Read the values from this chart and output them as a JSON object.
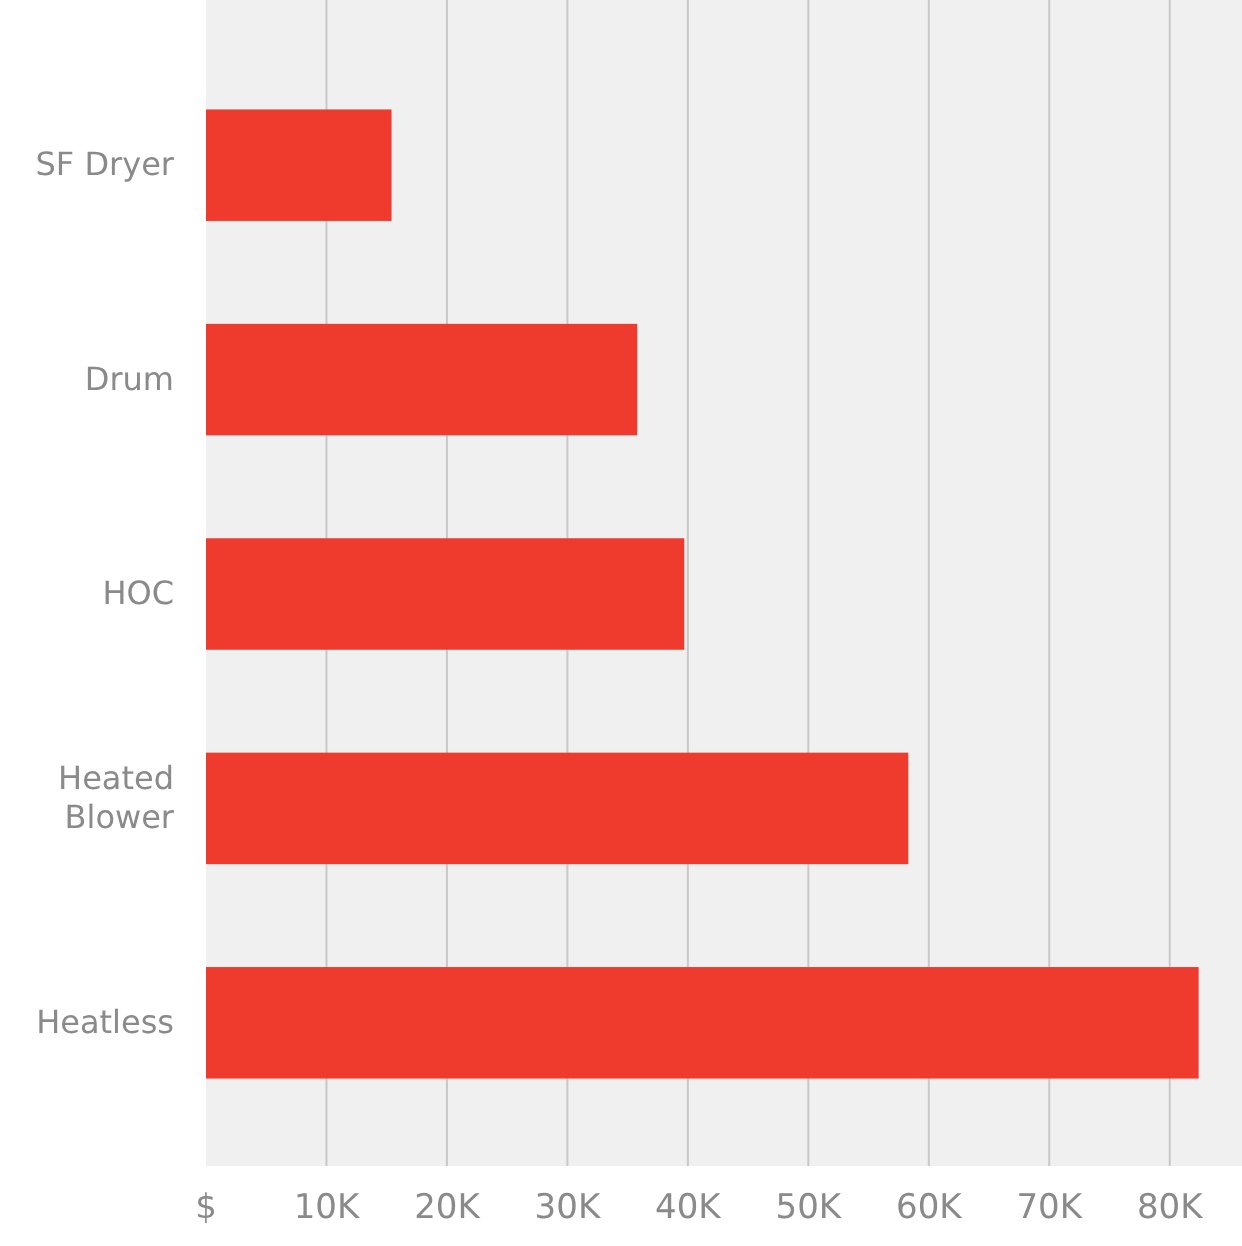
{
  "chart_data": {
    "type": "bar",
    "orientation": "horizontal",
    "categories": [
      "SF Dryer",
      "Drum",
      "HOC",
      "Heated Blower",
      "Heatless"
    ],
    "values": [
      15400,
      35800,
      39700,
      58300,
      82400
    ],
    "color": "#ef3a2e",
    "xlim": [
      0,
      86000
    ],
    "xticks": [
      {
        "value": 0,
        "label": "$"
      },
      {
        "value": 10000,
        "label": "10K"
      },
      {
        "value": 20000,
        "label": "20K"
      },
      {
        "value": 30000,
        "label": "30K"
      },
      {
        "value": 40000,
        "label": "40K"
      },
      {
        "value": 50000,
        "label": "50K"
      },
      {
        "value": 60000,
        "label": "60K"
      },
      {
        "value": 70000,
        "label": "70K"
      },
      {
        "value": 80000,
        "label": "80K"
      }
    ],
    "grid": "x"
  }
}
